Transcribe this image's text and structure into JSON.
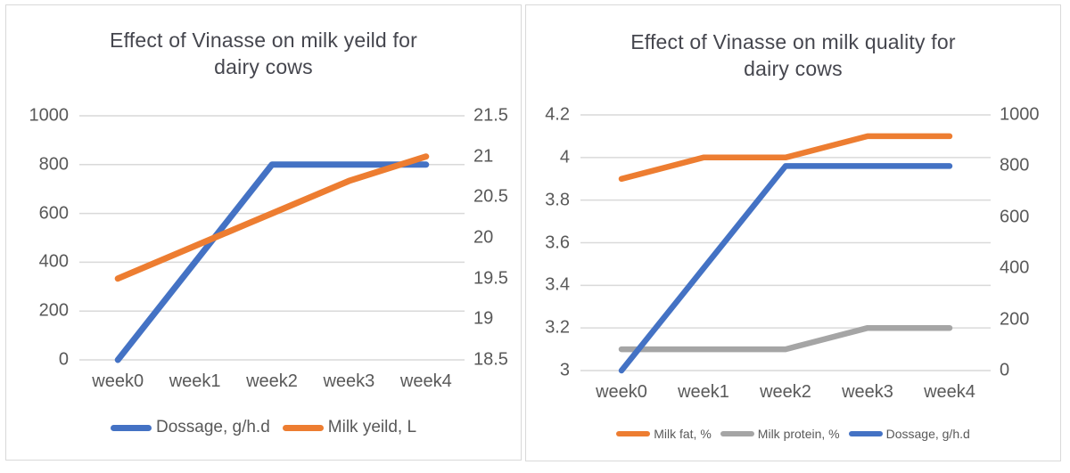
{
  "styles": {
    "page_background": "#ffffff",
    "panel_background": "#ffffff",
    "panel_border_color": "#d9d9d9",
    "gridline_color": "#d9d9d9",
    "title_color": "#45464e",
    "axis_label_color": "#595959",
    "series_blue": "#4472C4",
    "series_orange": "#ED7D31",
    "series_gray": "#A5A5A5"
  },
  "chart_data": [
    {
      "type": "line",
      "title": "Effect of Vinasse on milk yeild for dairy cows",
      "title_lines": [
        "Effect of Vinasse on milk yeild for",
        "dairy cows"
      ],
      "categories": [
        "week0",
        "week1",
        "week2",
        "week3",
        "week4"
      ],
      "series": [
        {
          "name": "Dossage, g/h.d",
          "axis": "left",
          "color": "#4472C4",
          "values": [
            0,
            400,
            800,
            800,
            800
          ]
        },
        {
          "name": "Milk yeild, L",
          "axis": "right",
          "color": "#ED7D31",
          "values": [
            19.5,
            19.9,
            20.3,
            20.7,
            21
          ]
        }
      ],
      "left_axis": {
        "min": 0,
        "max": 1000,
        "ticks": [
          "1000",
          "800",
          "600",
          "400",
          "200",
          "0"
        ]
      },
      "right_axis": {
        "min": 18.5,
        "max": 21.5,
        "ticks": [
          "21.5",
          "21",
          "20.5",
          "20",
          "19.5",
          "19",
          "18.5"
        ]
      },
      "xlabel": "",
      "ylabel": "",
      "grid": true,
      "legend_position": "bottom"
    },
    {
      "type": "line",
      "title": "Effect of Vinasse on milk quality for dairy cows",
      "title_lines": [
        "Effect of Vinasse on milk quality for",
        "dairy cows"
      ],
      "categories": [
        "week0",
        "week1",
        "week2",
        "week3",
        "week4"
      ],
      "series": [
        {
          "name": "Milk fat, %",
          "axis": "left",
          "color": "#ED7D31",
          "values": [
            3.9,
            4.0,
            4.0,
            4.1,
            4.1
          ]
        },
        {
          "name": "Milk protein, %",
          "axis": "left",
          "color": "#A5A5A5",
          "values": [
            3.1,
            3.1,
            3.1,
            3.2,
            3.2
          ]
        },
        {
          "name": "Dossage, g/h.d",
          "axis": "right",
          "color": "#4472C4",
          "values": [
            0,
            400,
            800,
            800,
            800
          ]
        }
      ],
      "left_axis": {
        "min": 3,
        "max": 4.2,
        "ticks": [
          "4.2",
          "4",
          "3.8",
          "3.6",
          "3.4",
          "3.2",
          "3"
        ]
      },
      "right_axis": {
        "min": 0,
        "max": 1000,
        "ticks": [
          "1000",
          "800",
          "600",
          "400",
          "200",
          "0"
        ]
      },
      "xlabel": "",
      "ylabel": "",
      "grid": true,
      "legend_position": "bottom"
    }
  ]
}
